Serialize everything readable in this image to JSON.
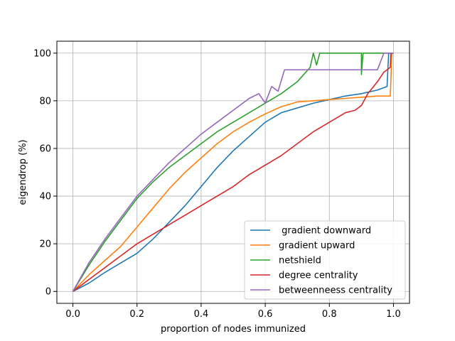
{
  "chart_data": {
    "type": "line",
    "title": "",
    "xlabel": "proportion of nodes immunized",
    "ylabel": "eigendrop (%)",
    "xlim": [
      -0.05,
      1.05
    ],
    "ylim": [
      -5,
      105
    ],
    "xticks": [
      0.0,
      0.2,
      0.4,
      0.6,
      0.8,
      1.0
    ],
    "xtick_labels": [
      "0.0",
      "0.2",
      "0.4",
      "0.6",
      "0.8",
      "1.0"
    ],
    "yticks": [
      0,
      20,
      40,
      60,
      80,
      100
    ],
    "ytick_labels": [
      "0",
      "20",
      "40",
      "60",
      "80",
      "100"
    ],
    "grid": true,
    "legend_position": "bottom-right",
    "series": [
      {
        "name": " gradient downward",
        "color": "#1f77b4",
        "points": [
          [
            0,
            0
          ],
          [
            0.05,
            3.5
          ],
          [
            0.1,
            8
          ],
          [
            0.15,
            12
          ],
          [
            0.2,
            16
          ],
          [
            0.25,
            22
          ],
          [
            0.3,
            29
          ],
          [
            0.35,
            36
          ],
          [
            0.4,
            44
          ],
          [
            0.45,
            52
          ],
          [
            0.5,
            59
          ],
          [
            0.55,
            65
          ],
          [
            0.6,
            71
          ],
          [
            0.65,
            75
          ],
          [
            0.7,
            77
          ],
          [
            0.75,
            79
          ],
          [
            0.8,
            80.5
          ],
          [
            0.85,
            82
          ],
          [
            0.9,
            83
          ],
          [
            0.95,
            84.5
          ],
          [
            0.98,
            86
          ],
          [
            0.985,
            100
          ],
          [
            1.0,
            100
          ]
        ]
      },
      {
        "name": "gradient upward",
        "color": "#ff7f0e",
        "points": [
          [
            0,
            0
          ],
          [
            0.05,
            7
          ],
          [
            0.1,
            13
          ],
          [
            0.15,
            19
          ],
          [
            0.2,
            27
          ],
          [
            0.25,
            35
          ],
          [
            0.3,
            43
          ],
          [
            0.35,
            50
          ],
          [
            0.4,
            56
          ],
          [
            0.45,
            62
          ],
          [
            0.5,
            67
          ],
          [
            0.55,
            71
          ],
          [
            0.6,
            74.5
          ],
          [
            0.65,
            77.5
          ],
          [
            0.7,
            79.5
          ],
          [
            0.75,
            80
          ],
          [
            0.8,
            80.5
          ],
          [
            0.85,
            81
          ],
          [
            0.9,
            81.5
          ],
          [
            0.95,
            82
          ],
          [
            0.99,
            82
          ],
          [
            0.995,
            100
          ],
          [
            1.0,
            100
          ]
        ]
      },
      {
        "name": "netshield",
        "color": "#2ca02c",
        "points": [
          [
            0,
            0
          ],
          [
            0.05,
            11
          ],
          [
            0.1,
            21
          ],
          [
            0.15,
            30
          ],
          [
            0.2,
            39
          ],
          [
            0.25,
            46
          ],
          [
            0.3,
            52
          ],
          [
            0.35,
            57
          ],
          [
            0.4,
            62
          ],
          [
            0.45,
            67
          ],
          [
            0.5,
            71
          ],
          [
            0.55,
            75
          ],
          [
            0.6,
            79
          ],
          [
            0.65,
            83
          ],
          [
            0.7,
            88
          ],
          [
            0.72,
            91
          ],
          [
            0.74,
            94
          ],
          [
            0.75,
            100
          ],
          [
            0.76,
            95
          ],
          [
            0.77,
            100
          ],
          [
            0.9,
            100
          ],
          [
            0.9,
            91
          ],
          [
            0.905,
            100
          ],
          [
            1.0,
            100
          ]
        ]
      },
      {
        "name": "degree centrality",
        "color": "#d62728",
        "points": [
          [
            0,
            0
          ],
          [
            0.05,
            5
          ],
          [
            0.1,
            10
          ],
          [
            0.15,
            15
          ],
          [
            0.2,
            20
          ],
          [
            0.25,
            24
          ],
          [
            0.3,
            28
          ],
          [
            0.35,
            32
          ],
          [
            0.4,
            36
          ],
          [
            0.45,
            40
          ],
          [
            0.5,
            44
          ],
          [
            0.55,
            49
          ],
          [
            0.6,
            53
          ],
          [
            0.65,
            57
          ],
          [
            0.7,
            62
          ],
          [
            0.75,
            67
          ],
          [
            0.8,
            71
          ],
          [
            0.85,
            75
          ],
          [
            0.88,
            76
          ],
          [
            0.9,
            78
          ],
          [
            0.92,
            83
          ],
          [
            0.95,
            88
          ],
          [
            0.97,
            92
          ],
          [
            0.99,
            94
          ],
          [
            0.992,
            100
          ],
          [
            1.0,
            100
          ]
        ]
      },
      {
        "name": "betweenneess centrality",
        "color": "#9467bd",
        "points": [
          [
            0,
            0
          ],
          [
            0.05,
            12
          ],
          [
            0.1,
            22
          ],
          [
            0.15,
            31
          ],
          [
            0.2,
            40
          ],
          [
            0.25,
            47
          ],
          [
            0.3,
            54
          ],
          [
            0.35,
            60
          ],
          [
            0.4,
            66
          ],
          [
            0.45,
            71
          ],
          [
            0.5,
            76
          ],
          [
            0.55,
            81
          ],
          [
            0.58,
            83
          ],
          [
            0.6,
            79
          ],
          [
            0.62,
            86
          ],
          [
            0.64,
            84
          ],
          [
            0.66,
            93
          ],
          [
            0.7,
            93
          ],
          [
            0.75,
            93
          ],
          [
            0.8,
            93
          ],
          [
            0.85,
            93
          ],
          [
            0.9,
            93
          ],
          [
            0.95,
            93
          ],
          [
            0.97,
            100
          ],
          [
            1.0,
            100
          ]
        ]
      }
    ]
  }
}
